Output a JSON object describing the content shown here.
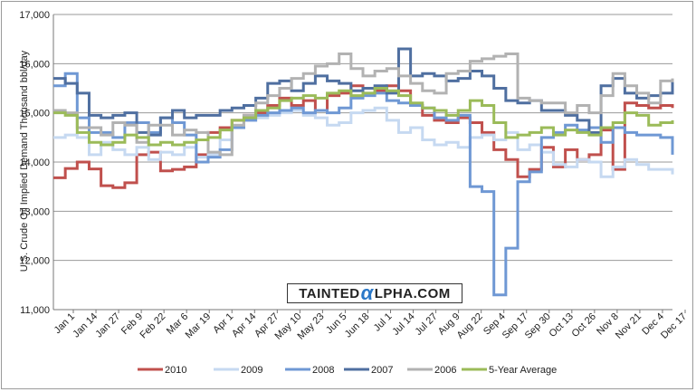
{
  "chart_data": {
    "type": "line",
    "ylabel": "U.S. Crude Oil Implied Demand Thousand bbl/day",
    "ylim": [
      11000,
      17000
    ],
    "yticks": [
      "11,000",
      "12,000",
      "13,000",
      "14,000",
      "15,000",
      "16,000",
      "17,000"
    ],
    "yticks_values": [
      11000,
      12000,
      13000,
      14000,
      15000,
      16000,
      17000
    ],
    "x_categories": [
      "Jan 1",
      "Jan 14",
      "Jan 27",
      "Feb 9",
      "Feb 22",
      "Mar 6",
      "Mar 19",
      "Apr 1",
      "Apr 14",
      "Apr 27",
      "May 10",
      "May 23",
      "Jun 5",
      "Jun 18",
      "Jul 1",
      "Jul 14",
      "Jul 27",
      "Aug 9",
      "Aug 22",
      "Sep 4",
      "Sep 17",
      "Sep 30",
      "Oct 13",
      "Oct 26",
      "Nov 8",
      "Nov 21",
      "Dec 4",
      "Dec 17"
    ],
    "x_weeks": [
      "Jan 1",
      "Jan 8",
      "Jan 15",
      "Jan 22",
      "Jan 29",
      "Feb 5",
      "Feb 12",
      "Feb 19",
      "Feb 26",
      "Mar 5",
      "Mar 12",
      "Mar 19",
      "Mar 26",
      "Apr 2",
      "Apr 9",
      "Apr 16",
      "Apr 23",
      "Apr 30",
      "May 7",
      "May 14",
      "May 21",
      "May 28",
      "Jun 4",
      "Jun 11",
      "Jun 18",
      "Jun 25",
      "Jul 2",
      "Jul 9",
      "Jul 16",
      "Jul 23",
      "Jul 30",
      "Aug 6",
      "Aug 13",
      "Aug 20",
      "Aug 27",
      "Sep 3",
      "Sep 10",
      "Sep 17",
      "Sep 24",
      "Oct 1",
      "Oct 8",
      "Oct 15",
      "Oct 22",
      "Oct 29",
      "Nov 5",
      "Nov 12",
      "Nov 19",
      "Nov 26",
      "Dec 3",
      "Dec 10",
      "Dec 17",
      "Dec 24",
      "Dec 31"
    ],
    "grid": true,
    "legend_position": "bottom",
    "series": [
      {
        "name": "2010",
        "color": "#c0504d",
        "values": [
          13680,
          13870,
          14000,
          13860,
          13520,
          13480,
          13580,
          14150,
          14200,
          13820,
          13850,
          13900,
          14150,
          14600,
          14700,
          14850,
          14950,
          15000,
          15150,
          15300,
          15150,
          15250,
          15050,
          15350,
          15400,
          15550,
          15500,
          15450,
          15550,
          15450,
          15150,
          14950,
          14850,
          14800,
          14900,
          14800,
          14600,
          14250,
          14050,
          13700,
          13850,
          14300,
          13900,
          14250,
          14050,
          14150,
          14650,
          13850,
          15200,
          15150,
          15100,
          15150,
          15100
        ]
      },
      {
        "name": "2009",
        "color": "#c6d9f1",
        "values": [
          14500,
          14550,
          14500,
          14150,
          14400,
          14250,
          14150,
          14300,
          14050,
          14200,
          14150,
          14300,
          14100,
          14150,
          14450,
          14700,
          14850,
          14900,
          14950,
          15000,
          15050,
          14950,
          14900,
          14750,
          14800,
          15000,
          15050,
          15100,
          14850,
          14600,
          14700,
          14450,
          14350,
          14400,
          14300,
          14500,
          14550,
          14450,
          14600,
          14250,
          14350,
          14200,
          13950,
          13900,
          14050,
          14000,
          13700,
          13900,
          14050,
          13950,
          13850,
          13850,
          13750
        ]
      },
      {
        "name": "2008",
        "color": "#6f98d4",
        "values": [
          15550,
          15800,
          14900,
          14600,
          14600,
          14500,
          14800,
          14800,
          14600,
          14900,
          14800,
          14550,
          14000,
          14100,
          14250,
          14700,
          14850,
          14950,
          15000,
          15050,
          15100,
          15000,
          15050,
          15000,
          15100,
          15300,
          15350,
          15400,
          15250,
          15200,
          15150,
          15100,
          14900,
          14850,
          14950,
          13500,
          13400,
          11300,
          12250,
          13600,
          13800,
          14500,
          14600,
          14750,
          14650,
          14700,
          14400,
          14700,
          14600,
          14550,
          14550,
          14500,
          14150
        ]
      },
      {
        "name": "2007",
        "color": "#4f6fa0",
        "values": [
          15700,
          15600,
          15400,
          14950,
          14900,
          14950,
          15000,
          14600,
          14550,
          14900,
          15050,
          14900,
          14950,
          14950,
          15050,
          15100,
          15150,
          15300,
          15600,
          15650,
          15450,
          15600,
          15750,
          15650,
          15600,
          15450,
          15500,
          15550,
          15400,
          16300,
          15750,
          15800,
          15750,
          15650,
          15700,
          15850,
          15750,
          15500,
          15250,
          15200,
          15250,
          15050,
          15050,
          14950,
          14850,
          14600,
          15550,
          15700,
          15400,
          15300,
          15350,
          15400,
          15650
        ]
      },
      {
        "name": "2006",
        "color": "#b2b2b2",
        "values": [
          15050,
          15000,
          14700,
          14700,
          14550,
          14800,
          14750,
          14400,
          14750,
          14750,
          14550,
          14650,
          14600,
          14200,
          14150,
          14750,
          14950,
          15200,
          15350,
          15500,
          15700,
          15800,
          15950,
          16000,
          16200,
          15900,
          15750,
          15850,
          15900,
          15750,
          15600,
          15450,
          15400,
          15800,
          15850,
          16050,
          16100,
          16150,
          16200,
          15300,
          15250,
          15200,
          15200,
          15000,
          15150,
          15000,
          15350,
          15800,
          15550,
          15400,
          15200,
          15650,
          15700
        ]
      },
      {
        "name": "5-Year Average",
        "color": "#9bbb59",
        "values": [
          15000,
          14950,
          14600,
          14400,
          14350,
          14400,
          14550,
          14500,
          14350,
          14400,
          14350,
          14400,
          14450,
          14500,
          14650,
          14850,
          14900,
          15050,
          15100,
          15250,
          15300,
          15350,
          15300,
          15400,
          15450,
          15350,
          15400,
          15500,
          15450,
          15350,
          15200,
          15100,
          15050,
          14950,
          15050,
          15250,
          15150,
          14800,
          14500,
          14550,
          14600,
          14700,
          14550,
          14650,
          14600,
          14550,
          14700,
          14800,
          15000,
          14950,
          14750,
          14800,
          14850
        ]
      }
    ]
  },
  "watermark": {
    "pre": "TAINTED",
    "alpha": "α",
    "post": "LPHA.COM"
  }
}
